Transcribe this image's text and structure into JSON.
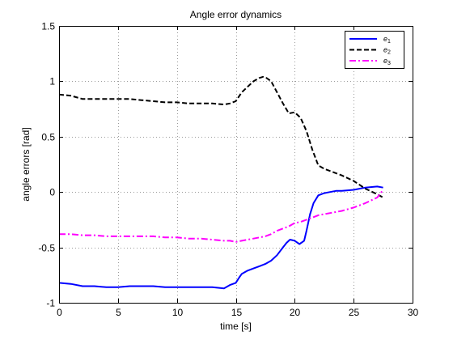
{
  "chart_data": {
    "type": "line",
    "title": "Angle error dynamics",
    "xlabel": "time [s]",
    "ylabel": "angle errors [rad]",
    "xlim": [
      0,
      30
    ],
    "ylim": [
      -1,
      1.5
    ],
    "xticks": [
      0,
      5,
      10,
      15,
      20,
      25,
      30
    ],
    "xtick_labels": [
      "0",
      "5",
      "10",
      "15",
      "20",
      "25",
      "30"
    ],
    "yticks": [
      -1,
      -0.5,
      0,
      0.5,
      1,
      1.5
    ],
    "ytick_labels": [
      "-1",
      "-0.5",
      "0",
      "0.5",
      "1",
      "1.5"
    ],
    "grid": true,
    "legend_position": "top-right",
    "series": [
      {
        "name": "e",
        "subscript": "1",
        "color": "#0000ff",
        "style": "solid",
        "x": [
          0,
          1,
          2,
          3,
          4,
          5,
          6,
          7,
          8,
          9,
          10,
          11,
          12,
          13,
          14,
          14.5,
          15,
          15.3,
          15.5,
          16,
          16.5,
          17,
          17.5,
          18,
          18.5,
          19,
          19.3,
          19.6,
          20,
          20.4,
          20.8,
          21,
          21.3,
          21.6,
          22,
          22.5,
          23,
          23.5,
          24,
          25,
          26,
          27,
          27.5
        ],
        "y": [
          -0.82,
          -0.83,
          -0.85,
          -0.85,
          -0.86,
          -0.86,
          -0.85,
          -0.85,
          -0.85,
          -0.86,
          -0.86,
          -0.86,
          -0.86,
          -0.86,
          -0.87,
          -0.84,
          -0.82,
          -0.77,
          -0.74,
          -0.71,
          -0.69,
          -0.67,
          -0.65,
          -0.62,
          -0.57,
          -0.5,
          -0.46,
          -0.43,
          -0.44,
          -0.47,
          -0.44,
          -0.35,
          -0.2,
          -0.1,
          -0.03,
          -0.01,
          0.0,
          0.01,
          0.01,
          0.02,
          0.04,
          0.05,
          0.04
        ]
      },
      {
        "name": "e",
        "subscript": "2",
        "color": "#000000",
        "style": "dashed",
        "x": [
          0,
          1,
          2,
          3,
          4,
          5,
          6,
          7,
          8,
          9,
          10,
          11,
          12,
          13,
          14,
          14.5,
          15,
          15.5,
          16,
          16.5,
          17,
          17.3,
          17.6,
          18,
          18.5,
          19,
          19.5,
          20,
          20.5,
          21,
          21.5,
          22,
          22.5,
          23,
          24,
          25,
          26,
          27,
          27.5
        ],
        "y": [
          0.88,
          0.87,
          0.84,
          0.84,
          0.84,
          0.84,
          0.84,
          0.83,
          0.82,
          0.81,
          0.81,
          0.8,
          0.8,
          0.8,
          0.79,
          0.8,
          0.82,
          0.9,
          0.95,
          1.0,
          1.03,
          1.04,
          1.03,
          1.0,
          0.9,
          0.8,
          0.71,
          0.72,
          0.67,
          0.55,
          0.38,
          0.24,
          0.21,
          0.19,
          0.15,
          0.1,
          0.03,
          -0.02,
          -0.05
        ]
      },
      {
        "name": "e",
        "subscript": "3",
        "color": "#ff00ff",
        "style": "dashdot",
        "x": [
          0,
          1,
          2,
          3,
          4,
          5,
          6,
          7,
          8,
          9,
          10,
          11,
          12,
          13,
          14,
          14.5,
          15,
          15.5,
          16,
          16.5,
          17,
          17.5,
          18,
          18.5,
          19,
          19.5,
          20,
          20.5,
          21,
          21.5,
          22,
          23,
          24,
          25,
          26,
          27,
          27.5
        ],
        "y": [
          -0.38,
          -0.38,
          -0.39,
          -0.39,
          -0.4,
          -0.4,
          -0.4,
          -0.4,
          -0.4,
          -0.41,
          -0.41,
          -0.42,
          -0.42,
          -0.43,
          -0.44,
          -0.44,
          -0.45,
          -0.44,
          -0.43,
          -0.42,
          -0.41,
          -0.4,
          -0.38,
          -0.35,
          -0.33,
          -0.31,
          -0.28,
          -0.27,
          -0.25,
          -0.23,
          -0.21,
          -0.19,
          -0.17,
          -0.14,
          -0.1,
          -0.05,
          0.02
        ]
      }
    ]
  }
}
